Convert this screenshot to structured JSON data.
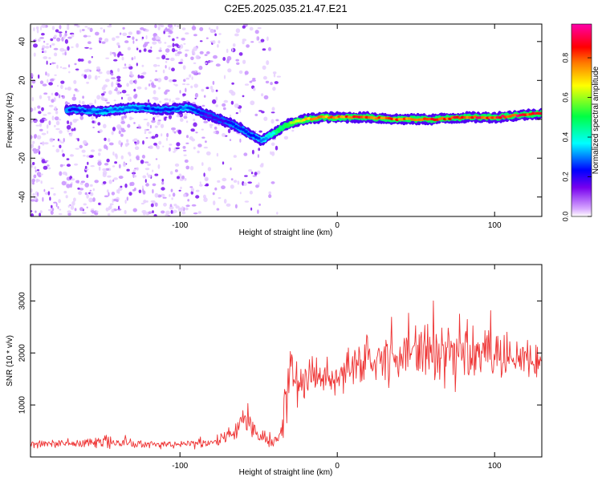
{
  "figure": {
    "title": "C2E5.2025.035.21.47.E21"
  },
  "chart_data": [
    {
      "type": "heatmap",
      "xlabel": "Height of straight line (km)",
      "ylabel": "Frequency (Hz)",
      "xlim": [
        -195,
        130
      ],
      "ylim": [
        -50,
        49
      ],
      "x_ticks": [
        -100,
        0,
        100
      ],
      "y_ticks": [
        -40,
        -20,
        0,
        20,
        40
      ],
      "grid": false,
      "colormap": "rainbow (white-violet-blue-cyan-green-yellow-red-magenta)",
      "colorbar": {
        "label": "Normalized spectral amplitude",
        "range": [
          0.0,
          0.97
        ],
        "ticks": [
          0.0,
          0.2,
          0.4,
          0.6,
          0.8
        ]
      },
      "ridge": {
        "description": "peak-frequency ridge vs height",
        "x": [
          -170,
          -150,
          -130,
          -110,
          -95,
          -85,
          -75,
          -65,
          -55,
          -48,
          -40,
          -30,
          -20,
          -10,
          0,
          20,
          40,
          60,
          80,
          100,
          115,
          130
        ],
        "freq": [
          5,
          4,
          6,
          5,
          6,
          3,
          0,
          -3,
          -8,
          -11,
          -7,
          -2,
          0,
          1,
          1,
          1,
          0,
          0,
          1,
          1,
          2,
          3
        ],
        "peak_amplitude": [
          0.25,
          0.3,
          0.3,
          0.25,
          0.3,
          0.2,
          0.2,
          0.25,
          0.25,
          0.3,
          0.45,
          0.6,
          0.75,
          0.8,
          0.85,
          0.9,
          0.85,
          0.9,
          0.9,
          0.9,
          0.95,
          0.9
        ]
      }
    },
    {
      "type": "line",
      "xlabel": "Height of straight line (km)",
      "ylabel": "SNR (10 * v/v)",
      "xlim": [
        -195,
        130
      ],
      "ylim": [
        0,
        3700
      ],
      "x_ticks": [
        -100,
        0,
        100
      ],
      "y_ticks": [
        1000,
        2000,
        3000
      ],
      "grid": false,
      "series": [
        {
          "color": "#ee3333",
          "x": [
            -195,
            -180,
            -170,
            -160,
            -150,
            -145,
            -140,
            -130,
            -120,
            -110,
            -100,
            -90,
            -80,
            -75,
            -70,
            -65,
            -60,
            -55,
            -50,
            -45,
            -40,
            -35,
            -33,
            -30,
            -28,
            -25,
            -20,
            -15,
            -10,
            -5,
            0,
            10,
            20,
            30,
            40,
            50,
            60,
            70,
            80,
            90,
            100,
            110,
            120,
            130
          ],
          "y": [
            250,
            250,
            270,
            260,
            300,
            320,
            280,
            260,
            250,
            240,
            250,
            260,
            270,
            300,
            400,
            500,
            750,
            550,
            350,
            300,
            280,
            450,
            1200,
            1900,
            1500,
            1400,
            1500,
            1550,
            1600,
            1600,
            1500,
            1700,
            1800,
            1900,
            2000,
            1900,
            2000,
            2050,
            1950,
            2000,
            1950,
            1900,
            1900,
            1900
          ],
          "spread": [
            90,
            90,
            100,
            100,
            150,
            200,
            110,
            90,
            90,
            90,
            90,
            90,
            100,
            140,
            180,
            250,
            350,
            250,
            150,
            120,
            100,
            150,
            500,
            500,
            500,
            500,
            400,
            400,
            450,
            450,
            450,
            500,
            550,
            550,
            550,
            550,
            650,
            600,
            650,
            650,
            600,
            550,
            550,
            500
          ]
        }
      ]
    }
  ]
}
